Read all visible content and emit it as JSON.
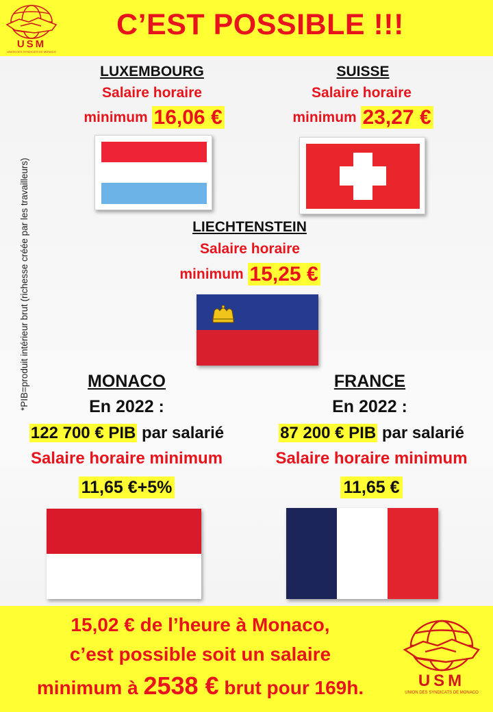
{
  "header": {
    "title": "C’EST POSSIBLE !!!"
  },
  "logo": {
    "name": "USM",
    "subtitle": "UNION DES SYNDICATS DE MONACO"
  },
  "side_note": "*PIB=produit intérieur brut (richesse créée par les travailleurs)",
  "luxembourg": {
    "name": "LUXEMBOURG",
    "line1": "Salaire horaire",
    "line2_prefix": "minimum",
    "value": "16,06 €",
    "flag_colors": [
      "#ee2436",
      "#ffffff",
      "#6cb4e8"
    ]
  },
  "suisse": {
    "name": "SUISSE",
    "line1": "Salaire horaire",
    "line2_prefix": "minimum",
    "value": "23,27 €",
    "flag_colors": [
      "#e8262b",
      "#ffffff"
    ]
  },
  "liechtenstein": {
    "name": "LIECHTENSTEIN",
    "line1": "Salaire horaire",
    "line2_prefix": "minimum",
    "value": "15,25 €",
    "flag_colors": [
      "#253b8f",
      "#d71f2e",
      "#f0c419"
    ]
  },
  "monaco": {
    "name": "MONACO",
    "year": "En 2022 :",
    "pib_value": "122 700 € PIB",
    "pib_suffix": "par salarié",
    "min_label": "Salaire horaire minimum",
    "min_value": "11,65 €+5%",
    "flag_colors": [
      "#d91a2a",
      "#ffffff"
    ]
  },
  "france": {
    "name": "FRANCE",
    "year": "En 2022 :",
    "pib_value": "87 200 € PIB",
    "pib_suffix": "par salarié",
    "min_label": "Salaire horaire minimum",
    "min_value": "11,65 €",
    "flag_colors": [
      "#1b2557",
      "#ffffff",
      "#e1242e"
    ]
  },
  "footer": {
    "line1": "15,02 € de l’heure à Monaco,",
    "line2": "c’est possible soit un salaire",
    "line3_prefix": "minimum à",
    "line3_amount": "2538 €",
    "line3_suffix": "brut pour 169h."
  },
  "colors": {
    "accent_yellow": "#ffff33",
    "accent_red": "#e8141c"
  }
}
